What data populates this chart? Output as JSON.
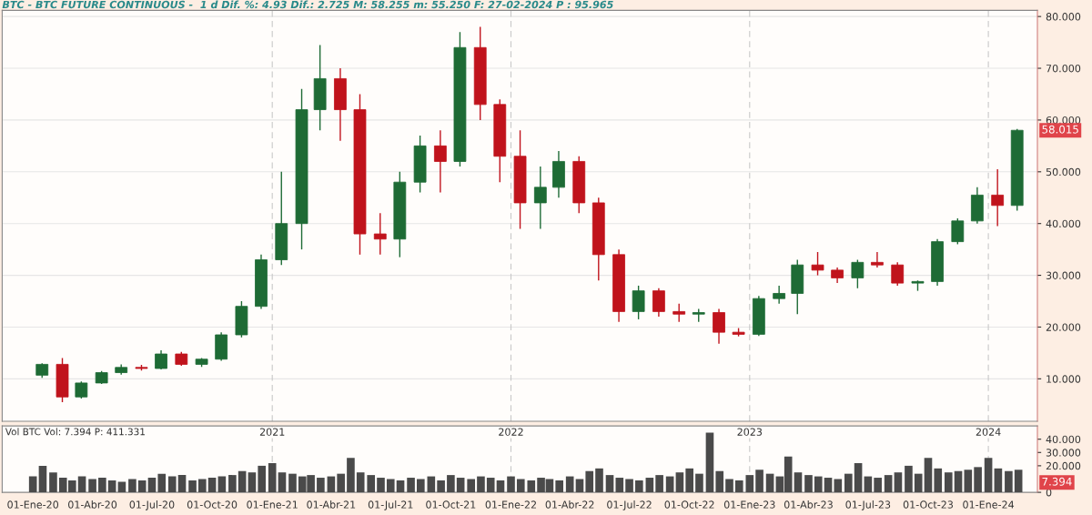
{
  "chart_data": [
    {
      "type": "candlestick",
      "title": "BTC - BTC FUTURE CONTINUOUS -  1 d Dif. %: 4.93 Dif.: 2.725 M: 58.255 m: 55.250 F: 27-02-2024 P : 95.965",
      "x": [
        "2020-01-15",
        "2020-02-15",
        "2020-03-15",
        "2020-04-15",
        "2020-05-15",
        "2020-06-15",
        "2020-07-15",
        "2020-08-15",
        "2020-09-15",
        "2020-10-15",
        "2020-11-15",
        "2020-12-15",
        "2021-01-15",
        "2021-02-15",
        "2021-03-15",
        "2021-04-15",
        "2021-05-15",
        "2021-06-15",
        "2021-07-15",
        "2021-08-15",
        "2021-09-15",
        "2021-10-15",
        "2021-11-15",
        "2021-12-15",
        "2022-01-15",
        "2022-02-15",
        "2022-03-15",
        "2022-04-15",
        "2022-05-15",
        "2022-06-15",
        "2022-07-15",
        "2022-08-15",
        "2022-09-15",
        "2022-10-15",
        "2022-11-15",
        "2022-12-15",
        "2023-01-15",
        "2023-02-15",
        "2023-03-15",
        "2023-04-15",
        "2023-05-15",
        "2023-06-15",
        "2023-07-15",
        "2023-08-15",
        "2023-09-15",
        "2023-10-15",
        "2023-11-15",
        "2023-12-15",
        "2024-01-15",
        "2024-02-14"
      ],
      "ohlc": [
        [
          10.7,
          13.0,
          10.2,
          12.8
        ],
        [
          12.8,
          14.0,
          5.5,
          6.5
        ],
        [
          6.5,
          9.5,
          6.2,
          9.2
        ],
        [
          9.2,
          11.5,
          9.0,
          11.2
        ],
        [
          11.2,
          12.8,
          10.8,
          12.2
        ],
        [
          12.2,
          12.7,
          11.6,
          12.0
        ],
        [
          12.0,
          15.5,
          11.8,
          14.8
        ],
        [
          14.8,
          15.2,
          12.5,
          12.8
        ],
        [
          12.8,
          14.0,
          12.3,
          13.8
        ],
        [
          13.8,
          19.0,
          13.5,
          18.5
        ],
        [
          18.5,
          25.0,
          18.0,
          24.0
        ],
        [
          24.0,
          34.0,
          23.5,
          33.0
        ],
        [
          33.0,
          50.0,
          32.0,
          40.0
        ],
        [
          40.0,
          66.0,
          35.0,
          62.0
        ],
        [
          62.0,
          74.5,
          58.0,
          68.0
        ],
        [
          68.0,
          70.0,
          56.0,
          62.0
        ],
        [
          62.0,
          65.0,
          34.0,
          38.0
        ],
        [
          38.0,
          42.0,
          34.0,
          37.0
        ],
        [
          37.0,
          50.0,
          33.5,
          48.0
        ],
        [
          48.0,
          57.0,
          46.0,
          55.0
        ],
        [
          55.0,
          58.0,
          46.0,
          52.0
        ],
        [
          52.0,
          77.0,
          51.0,
          74.0
        ],
        [
          74.0,
          78.0,
          60.0,
          63.0
        ],
        [
          63.0,
          64.0,
          48.0,
          53.0
        ],
        [
          53.0,
          58.0,
          39.0,
          44.0
        ],
        [
          44.0,
          51.0,
          39.0,
          47.0
        ],
        [
          47.0,
          54.0,
          45.0,
          52.0
        ],
        [
          52.0,
          53.0,
          42.0,
          44.0
        ],
        [
          44.0,
          45.0,
          29.0,
          34.0
        ],
        [
          34.0,
          35.0,
          21.0,
          23.0
        ],
        [
          23.0,
          28.0,
          21.5,
          27.0
        ],
        [
          27.0,
          27.5,
          22.0,
          23.0
        ],
        [
          23.0,
          24.5,
          21.0,
          22.5
        ],
        [
          22.5,
          23.5,
          21.0,
          22.8
        ],
        [
          22.8,
          23.5,
          16.8,
          19.0
        ],
        [
          19.0,
          19.8,
          18.2,
          18.6
        ],
        [
          18.6,
          26.0,
          18.3,
          25.5
        ],
        [
          25.5,
          28.0,
          24.5,
          26.5
        ],
        [
          26.5,
          33.0,
          22.5,
          32.0
        ],
        [
          32.0,
          34.5,
          30.0,
          31.0
        ],
        [
          31.0,
          31.5,
          28.5,
          29.5
        ],
        [
          29.5,
          33.0,
          27.5,
          32.5
        ],
        [
          32.5,
          34.5,
          31.5,
          32.0
        ],
        [
          32.0,
          32.5,
          28.0,
          28.5
        ],
        [
          28.5,
          29.0,
          27.0,
          28.8
        ],
        [
          28.8,
          37.0,
          28.0,
          36.5
        ],
        [
          36.5,
          41.0,
          36.0,
          40.5
        ],
        [
          40.5,
          47.0,
          40.0,
          45.5
        ],
        [
          45.5,
          50.5,
          39.5,
          43.5
        ],
        [
          43.5,
          58.255,
          42.5,
          58.015
        ]
      ],
      "colors": [
        "#1e6b35",
        "#c0131c",
        "#1e6b35",
        "#1e6b35",
        "#1e6b35",
        "#c0131c",
        "#1e6b35",
        "#c0131c",
        "#1e6b35",
        "#1e6b35",
        "#1e6b35",
        "#1e6b35",
        "#1e6b35",
        "#1e6b35",
        "#1e6b35",
        "#c0131c",
        "#c0131c",
        "#c0131c",
        "#1e6b35",
        "#1e6b35",
        "#c0131c",
        "#1e6b35",
        "#c0131c",
        "#c0131c",
        "#c0131c",
        "#1e6b35",
        "#1e6b35",
        "#c0131c",
        "#c0131c",
        "#c0131c",
        "#1e6b35",
        "#c0131c",
        "#c0131c",
        "#1e6b35",
        "#c0131c",
        "#c0131c",
        "#1e6b35",
        "#1e6b35",
        "#1e6b35",
        "#c0131c",
        "#c0131c",
        "#1e6b35",
        "#c0131c",
        "#c0131c",
        "#1e6b35",
        "#1e6b35",
        "#1e6b35",
        "#1e6b35",
        "#c0131c",
        "#1e6b35"
      ],
      "xlim": [
        "2019-11-15",
        "2024-03-16"
      ],
      "ylim": [
        1.8,
        81.2
      ],
      "yticks": [
        {
          "value": 10,
          "label": "10.000"
        },
        {
          "value": 20,
          "label": "20.000"
        },
        {
          "value": 30,
          "label": "30.000"
        },
        {
          "value": 40,
          "label": "40.000"
        },
        {
          "value": 50,
          "label": "50.000"
        },
        {
          "value": 60,
          "label": "60.000"
        },
        {
          "value": 70,
          "label": "70.000"
        },
        {
          "value": 80,
          "label": "80.000"
        }
      ],
      "grid": "y",
      "legend": false,
      "tick_labels": "y",
      "ref_lines": [
        {
          "axis": "x",
          "value": "2021-01-01",
          "color": "#c8c8c8",
          "line_style": "dashed"
        },
        {
          "axis": "x",
          "value": "2022-01-01",
          "color": "#c8c8c8",
          "line_style": "dashed"
        },
        {
          "axis": "x",
          "value": "2023-01-01",
          "color": "#c8c8c8",
          "line_style": "dashed"
        },
        {
          "axis": "x",
          "value": "2024-01-01",
          "color": "#c8c8c8",
          "line_style": "dashed"
        }
      ],
      "annotations": [
        {
          "text": "58.015",
          "x": "2024-02-14",
          "y": 58.015
        }
      ]
    },
    {
      "type": "bar",
      "title": "Vol BTC Vol: 7.394 P: 411.331",
      "color": "#4a4a4a",
      "x": [
        "2020-01-01",
        "2020-01-16",
        "2020-02-01",
        "2020-02-16",
        "2020-03-01",
        "2020-03-16",
        "2020-04-01",
        "2020-04-16",
        "2020-05-01",
        "2020-05-16",
        "2020-06-01",
        "2020-06-16",
        "2020-07-01",
        "2020-07-16",
        "2020-08-01",
        "2020-08-16",
        "2020-09-01",
        "2020-09-16",
        "2020-10-01",
        "2020-10-16",
        "2020-11-01",
        "2020-11-16",
        "2020-12-01",
        "2020-12-16",
        "2021-01-01",
        "2021-01-16",
        "2021-02-01",
        "2021-02-16",
        "2021-03-01",
        "2021-03-16",
        "2021-04-01",
        "2021-04-16",
        "2021-05-01",
        "2021-05-16",
        "2021-06-01",
        "2021-06-16",
        "2021-07-01",
        "2021-07-16",
        "2021-08-01",
        "2021-08-16",
        "2021-09-01",
        "2021-09-16",
        "2021-10-01",
        "2021-10-16",
        "2021-11-01",
        "2021-11-16",
        "2021-12-01",
        "2021-12-16",
        "2022-01-01",
        "2022-01-16",
        "2022-02-01",
        "2022-02-16",
        "2022-03-01",
        "2022-03-16",
        "2022-04-01",
        "2022-04-16",
        "2022-05-01",
        "2022-05-16",
        "2022-06-01",
        "2022-06-16",
        "2022-07-01",
        "2022-07-16",
        "2022-08-01",
        "2022-08-16",
        "2022-09-01",
        "2022-09-16",
        "2022-10-01",
        "2022-10-16",
        "2022-11-01",
        "2022-11-16",
        "2022-12-01",
        "2022-12-16",
        "2023-01-01",
        "2023-01-16",
        "2023-02-01",
        "2023-02-16",
        "2023-03-01",
        "2023-03-16",
        "2023-04-01",
        "2023-04-16",
        "2023-05-01",
        "2023-05-16",
        "2023-06-01",
        "2023-06-16",
        "2023-07-01",
        "2023-07-16",
        "2023-08-01",
        "2023-08-16",
        "2023-09-01",
        "2023-09-16",
        "2023-10-01",
        "2023-10-16",
        "2023-11-01",
        "2023-11-16",
        "2023-12-01",
        "2023-12-16",
        "2024-01-01",
        "2024-01-16",
        "2024-02-01",
        "2024-02-16"
      ],
      "values": [
        12,
        20,
        15,
        11,
        9,
        12,
        10,
        11,
        9,
        8,
        10,
        9,
        11,
        14,
        12,
        13,
        9,
        10,
        11,
        12,
        13,
        16,
        15,
        20,
        22,
        15,
        14,
        12,
        13,
        11,
        12,
        14,
        26,
        15,
        13,
        11,
        10,
        9,
        11,
        10,
        12,
        9,
        13,
        11,
        10,
        12,
        11,
        9,
        12,
        10,
        9,
        11,
        10,
        9,
        12,
        10,
        16,
        18,
        13,
        11,
        10,
        9,
        11,
        13,
        12,
        15,
        18,
        14,
        45,
        16,
        10,
        9,
        13,
        17,
        14,
        12,
        27,
        15,
        13,
        12,
        11,
        10,
        14,
        22,
        12,
        11,
        13,
        15,
        20,
        14,
        26,
        18,
        15,
        16,
        17,
        19,
        26,
        18,
        16,
        17
      ],
      "xlim": [
        "2019-11-15",
        "2024-03-16"
      ],
      "xticks": [
        {
          "value": "2020-01-01",
          "label": "01-Ene-20"
        },
        {
          "value": "2020-04-01",
          "label": "01-Abr-20"
        },
        {
          "value": "2020-07-01",
          "label": "01-Jul-20"
        },
        {
          "value": "2020-10-01",
          "label": "01-Oct-20"
        },
        {
          "value": "2021-01-01",
          "label": "01-Ene-21"
        },
        {
          "value": "2021-04-01",
          "label": "01-Abr-21"
        },
        {
          "value": "2021-07-01",
          "label": "01-Jul-21"
        },
        {
          "value": "2021-10-01",
          "label": "01-Oct-21"
        },
        {
          "value": "2022-01-01",
          "label": "01-Ene-22"
        },
        {
          "value": "2022-04-01",
          "label": "01-Abr-22"
        },
        {
          "value": "2022-07-01",
          "label": "01-Jul-22"
        },
        {
          "value": "2022-10-01",
          "label": "01-Oct-22"
        },
        {
          "value": "2023-01-01",
          "label": "01-Ene-23"
        },
        {
          "value": "2023-04-01",
          "label": "01-Abr-23"
        },
        {
          "value": "2023-07-01",
          "label": "01-Jul-23"
        },
        {
          "value": "2023-10-01",
          "label": "01-Oct-23"
        },
        {
          "value": "2024-01-01",
          "label": "01-Ene-24"
        }
      ],
      "ylim": [
        0,
        50
      ],
      "yticks": [
        0,
        {
          "value": 20,
          "label": "20.000"
        },
        {
          "value": 30,
          "label": "30.000"
        },
        {
          "value": 40,
          "label": "40.000"
        }
      ],
      "grid": false,
      "legend": false,
      "ref_lines": [
        {
          "axis": "x",
          "value": "2021-01-01",
          "label": "2021",
          "color": "#c8c8c8",
          "line_style": "dashed"
        },
        {
          "axis": "x",
          "value": "2022-01-01",
          "label": "2022",
          "color": "#c8c8c8",
          "line_style": "dashed"
        },
        {
          "axis": "x",
          "value": "2023-01-01",
          "label": "2023",
          "color": "#c8c8c8",
          "line_style": "dashed"
        },
        {
          "axis": "x",
          "value": "2024-01-01",
          "label": "2024",
          "color": "#c8c8c8",
          "line_style": "dashed"
        }
      ],
      "annotations": [
        {
          "text": "7.394",
          "x": "2024-02-16",
          "y": 7.394
        }
      ]
    }
  ]
}
